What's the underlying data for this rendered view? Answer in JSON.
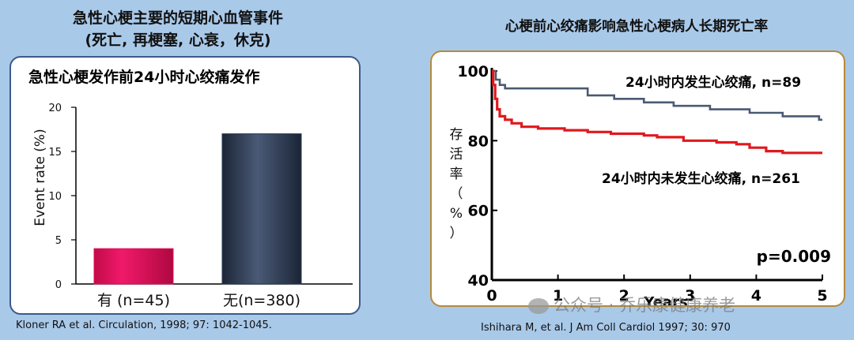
{
  "left": {
    "heading_line1": "急性心梗主要的短期心血管事件",
    "heading_line2": "(死亡, 再梗塞, 心衰，休克)",
    "panel_title": "急性心梗发作前24小时心绞痛发作",
    "reference": "Kloner RA et al. Circulation, 1998; 97: 1042-1045."
  },
  "right": {
    "heading": "心梗前心绞痛影响急性心梗病人长期死亡率",
    "reference": "Ishihara M, et al.  J Am Coll Cardiol 1997; 30: 970",
    "p_value": "p=0.009",
    "watermark": "公众号 · 乔乐康健康养老"
  },
  "chart_data": [
    {
      "type": "bar",
      "title": "急性心梗发作前24小时心绞痛发作",
      "ylabel": "Event rate (%)",
      "ylim": [
        0,
        20
      ],
      "yticks": [
        "0",
        "5",
        "10",
        "15",
        "20"
      ],
      "categories": [
        "有 (n=45)",
        "无(n=380)"
      ],
      "values": [
        4,
        17
      ],
      "colors": [
        "#e0105a",
        "#2a3850"
      ]
    },
    {
      "type": "line",
      "xlabel": "Years",
      "ylabel": "存活率（%）",
      "xlim": [
        0,
        5
      ],
      "ylim": [
        40,
        100
      ],
      "xticks": [
        "0",
        "1",
        "2",
        "3",
        "4",
        "5"
      ],
      "yticks": [
        "40",
        "60",
        "80",
        "100"
      ],
      "series": [
        {
          "name": "24小时内发生心绞痛, n=89",
          "color": "#4a5a72",
          "x": [
            0,
            0.06,
            0.06,
            0.12,
            0.12,
            0.2,
            0.2,
            1.45,
            1.45,
            1.85,
            1.85,
            2.3,
            2.3,
            2.75,
            2.75,
            3.3,
            3.3,
            3.9,
            3.9,
            4.4,
            4.4,
            4.95,
            4.95,
            5.0
          ],
          "y": [
            100,
            100,
            97.5,
            97.5,
            96,
            96,
            95,
            95,
            93,
            93,
            92,
            92,
            91,
            91,
            90,
            90,
            89,
            89,
            88,
            88,
            87,
            87,
            86,
            86
          ]
        },
        {
          "name": "24小时内未发生心绞痛, n=261",
          "color": "#e0181e",
          "x": [
            0,
            0.02,
            0.02,
            0.05,
            0.05,
            0.08,
            0.08,
            0.12,
            0.12,
            0.2,
            0.2,
            0.3,
            0.3,
            0.45,
            0.45,
            0.7,
            0.7,
            1.1,
            1.1,
            1.45,
            1.45,
            1.8,
            1.8,
            2.3,
            2.3,
            2.5,
            2.5,
            2.9,
            2.9,
            3.4,
            3.4,
            3.7,
            3.7,
            3.9,
            3.9,
            4.15,
            4.15,
            4.4,
            4.4,
            4.6,
            4.6,
            5.0
          ],
          "y": [
            100,
            100,
            96,
            96,
            92,
            92,
            89,
            89,
            87,
            87,
            86,
            86,
            85,
            85,
            84,
            84,
            83.5,
            83.5,
            83,
            83,
            82.5,
            82.5,
            82,
            82,
            81.5,
            81.5,
            81,
            81,
            80,
            80,
            79.5,
            79.5,
            79,
            79,
            78,
            78,
            77,
            77,
            76.5,
            76.5,
            76.5,
            76.5
          ]
        }
      ]
    }
  ]
}
